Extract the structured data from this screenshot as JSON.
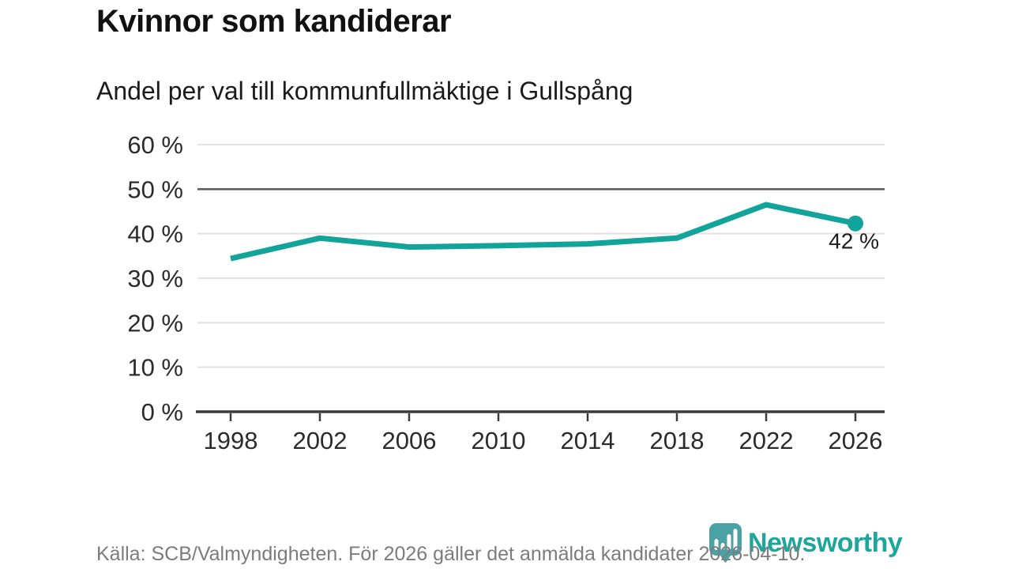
{
  "chart_data": {
    "type": "line",
    "title": "Kvinnor som kandiderar",
    "subtitle": "Andel per val till kommunfullmäktige i Gullspång",
    "x": [
      1998,
      2002,
      2006,
      2010,
      2014,
      2018,
      2022,
      2026
    ],
    "values": [
      34.4,
      39,
      37,
      37.3,
      37.7,
      39,
      46.5,
      42.3
    ],
    "end_label": "42 %",
    "ylim": [
      0,
      60
    ],
    "yticks": [
      0,
      10,
      20,
      30,
      40,
      50,
      60
    ],
    "ytick_suffix": " %",
    "emphasized_gridline": 50,
    "grid": true,
    "legend": "none",
    "line_color": "#12a39a",
    "marker_on_last_point": true
  },
  "footer": {
    "source": "Källa: SCB/Valmyndigheten. För 2026 gäller det anmälda kandidater 2026-04-10.",
    "logo_text": "Newsworthy"
  },
  "colors": {
    "accent_teal": "#12a39a",
    "logo_pin_teal": "#4ba2a4",
    "gridline": "#e2e2e2",
    "emphasized_gridline": "#55555c",
    "axis": "#3b3b3b",
    "tick_label": "#2b2b2b",
    "source_text": "#7c7c7c"
  }
}
